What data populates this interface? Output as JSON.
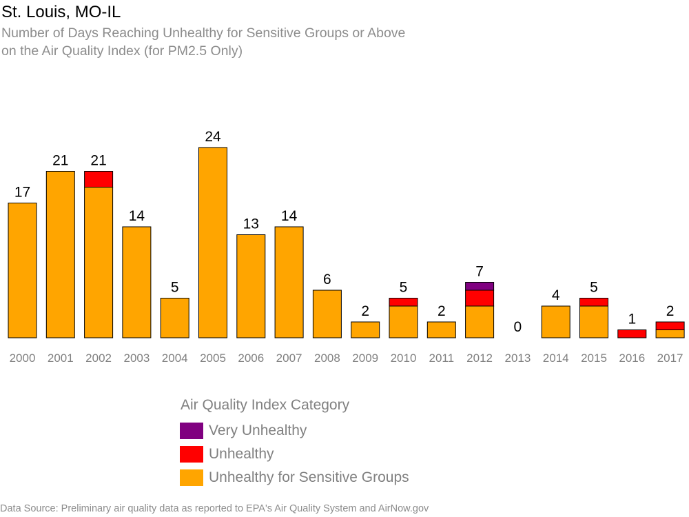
{
  "chart_data": {
    "type": "bar",
    "stacked": true,
    "title": "St. Louis, MO-IL",
    "subtitle_lines": [
      "Number of Days Reaching Unhealthy for Sensitive Groups or Above",
      "on the Air Quality Index (for PM2.5 Only)"
    ],
    "categories": [
      "2000",
      "2001",
      "2002",
      "2003",
      "2004",
      "2005",
      "2006",
      "2007",
      "2008",
      "2009",
      "2010",
      "2011",
      "2012",
      "2013",
      "2014",
      "2015",
      "2016",
      "2017"
    ],
    "series": [
      {
        "name": "Unhealthy for Sensitive Groups",
        "color": "#FFA500",
        "values": [
          17,
          21,
          19,
          14,
          5,
          24,
          13,
          14,
          6,
          2,
          4,
          2,
          4,
          0,
          4,
          4,
          0,
          1
        ]
      },
      {
        "name": "Unhealthy",
        "color": "#FF0000",
        "values": [
          0,
          0,
          2,
          0,
          0,
          0,
          0,
          0,
          0,
          0,
          1,
          0,
          2,
          0,
          0,
          1,
          1,
          1
        ]
      },
      {
        "name": "Very Unhealthy",
        "color": "#800080",
        "values": [
          0,
          0,
          0,
          0,
          0,
          0,
          0,
          0,
          0,
          0,
          0,
          0,
          1,
          0,
          0,
          0,
          0,
          0
        ]
      }
    ],
    "totals": [
      17,
      21,
      21,
      14,
      5,
      24,
      13,
      14,
      6,
      2,
      5,
      2,
      7,
      0,
      4,
      5,
      1,
      2
    ],
    "ylim": [
      0,
      24
    ],
    "grid": false,
    "legend": {
      "title": "Air Quality Index Category",
      "position": "bottom",
      "entries": [
        {
          "label": "Very Unhealthy",
          "color": "#800080"
        },
        {
          "label": "Unhealthy",
          "color": "#FF0000"
        },
        {
          "label": "Unhealthy for Sensitive Groups",
          "color": "#FFA500"
        }
      ]
    },
    "source": "Data Source: Preliminary air quality data as reported to EPA's Air Quality System and AirNow.gov"
  }
}
